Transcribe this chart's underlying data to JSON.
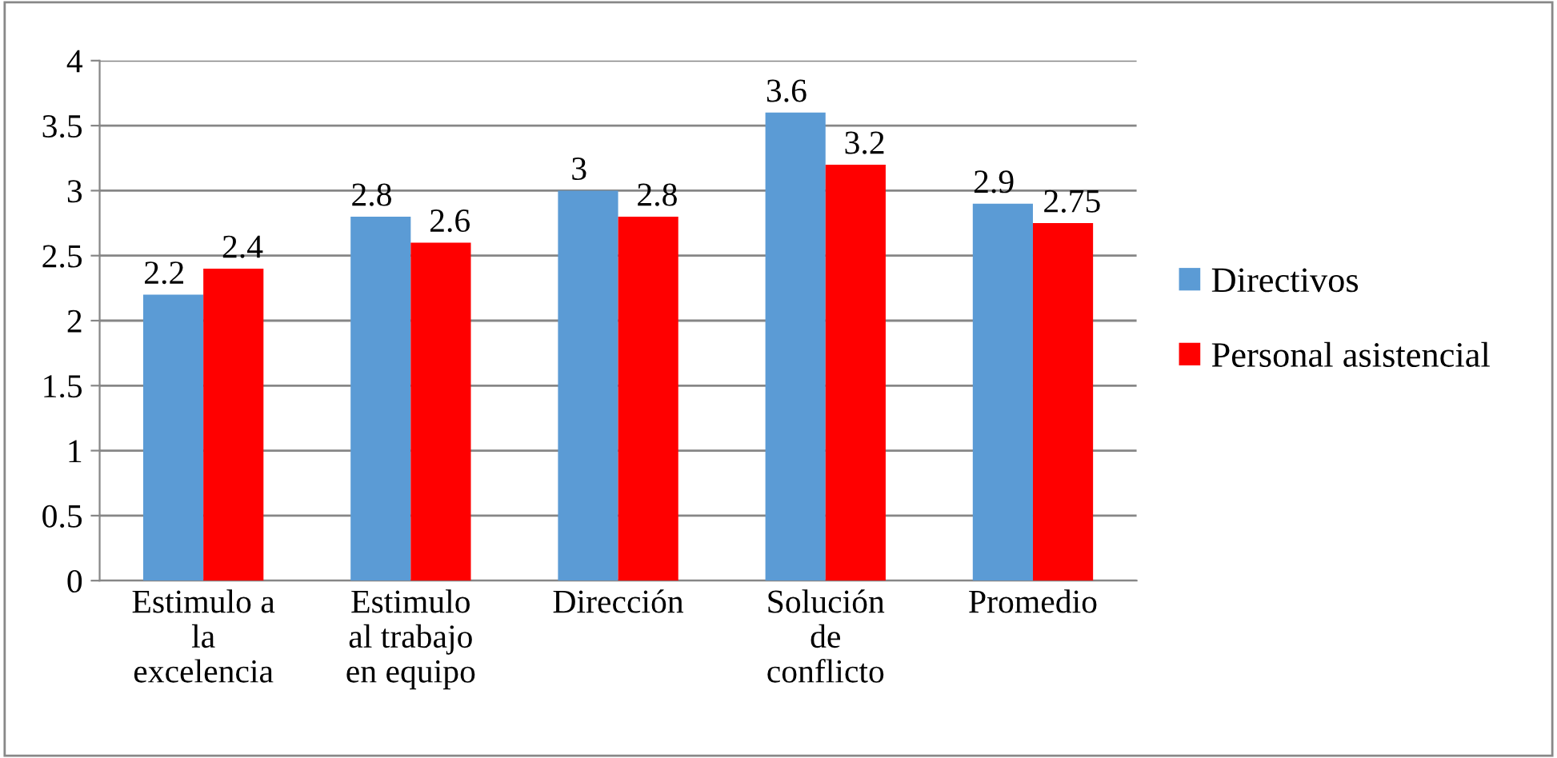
{
  "chart_data": {
    "type": "bar",
    "categories": [
      "Estimulo a\nla\nexcelencia",
      "Estimulo\nal trabajo\nen equipo",
      "Dirección",
      "Solución\nde\nconflicto",
      "Promedio"
    ],
    "series": [
      {
        "name": "Directivos",
        "color": "#5b9bd5",
        "values": [
          2.2,
          2.8,
          3,
          3.6,
          2.9
        ]
      },
      {
        "name": "Personal asistencial",
        "color": "#ff0000",
        "values": [
          2.4,
          2.6,
          2.8,
          3.2,
          2.75
        ]
      }
    ],
    "ylim": [
      0,
      4
    ],
    "yticks": [
      0,
      0.5,
      1,
      1.5,
      2,
      2.5,
      3,
      3.5,
      4
    ],
    "grid": "y",
    "legend": "right",
    "data_labels": true
  }
}
